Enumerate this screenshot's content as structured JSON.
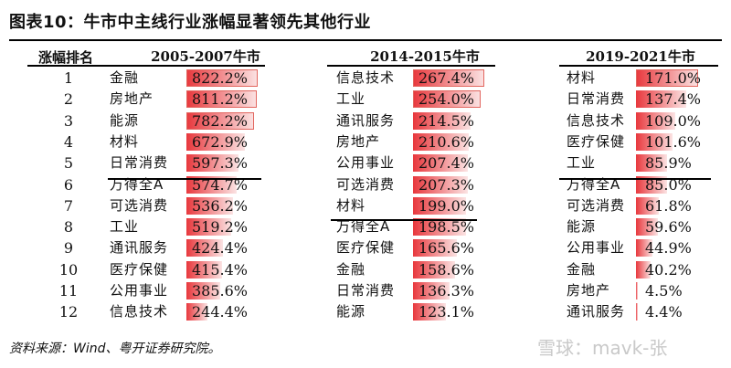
{
  "title": "图表10：牛市中主线行业涨幅显著领先其他行业",
  "rank_header": "涨幅排名",
  "groups": [
    {
      "header": "2005-2007牛市",
      "max": 822.2,
      "rows": [
        {
          "name": "金融",
          "value": "822.2%",
          "pct": 822.2
        },
        {
          "name": "房地产",
          "value": "811.2%",
          "pct": 811.2
        },
        {
          "name": "能源",
          "value": "782.2%",
          "pct": 782.2
        },
        {
          "name": "材料",
          "value": "672.9%",
          "pct": 672.9
        },
        {
          "name": "日常消费",
          "value": "597.3%",
          "pct": 597.3
        },
        {
          "name": "万得全A",
          "value": "574.7%",
          "pct": 574.7
        },
        {
          "name": "可选消费",
          "value": "536.2%",
          "pct": 536.2
        },
        {
          "name": "工业",
          "value": "519.2%",
          "pct": 519.2
        },
        {
          "name": "通讯服务",
          "value": "424.4%",
          "pct": 424.4
        },
        {
          "name": "医疗保健",
          "value": "415.4%",
          "pct": 415.4
        },
        {
          "name": "公用事业",
          "value": "385.6%",
          "pct": 385.6
        },
        {
          "name": "信息技术",
          "value": "244.4%",
          "pct": 244.4
        }
      ]
    },
    {
      "header": "2014-2015牛市",
      "max": 267.4,
      "rows": [
        {
          "name": "信息技术",
          "value": "267.4%",
          "pct": 267.4
        },
        {
          "name": "工业",
          "value": "254.0%",
          "pct": 254.0
        },
        {
          "name": "通讯服务",
          "value": "214.5%",
          "pct": 214.5
        },
        {
          "name": "房地产",
          "value": "210.6%",
          "pct": 210.6
        },
        {
          "name": "公用事业",
          "value": "207.4%",
          "pct": 207.4
        },
        {
          "name": "可选消费",
          "value": "207.3%",
          "pct": 207.3
        },
        {
          "name": "材料",
          "value": "199.0%",
          "pct": 199.0
        },
        {
          "name": "万得全A",
          "value": "198.5%",
          "pct": 198.5
        },
        {
          "name": "医疗保健",
          "value": "165.6%",
          "pct": 165.6
        },
        {
          "name": "金融",
          "value": "158.6%",
          "pct": 158.6
        },
        {
          "name": "日常消费",
          "value": "136.3%",
          "pct": 136.3
        },
        {
          "name": "能源",
          "value": "123.1%",
          "pct": 123.1
        }
      ]
    },
    {
      "header": "2019-2021牛市",
      "max": 171.0,
      "rows": [
        {
          "name": "材料",
          "value": "171.0%",
          "pct": 171.0
        },
        {
          "name": "日常消费",
          "value": "137.4%",
          "pct": 137.4
        },
        {
          "name": "信息技术",
          "value": "109.0%",
          "pct": 109.0
        },
        {
          "name": "医疗保健",
          "value": "101.6%",
          "pct": 101.6
        },
        {
          "name": "工业",
          "value": "85.9%",
          "pct": 85.9
        },
        {
          "name": "万得全A",
          "value": "85.0%",
          "pct": 85.0
        },
        {
          "name": "可选消费",
          "value": "61.8%",
          "pct": 61.8
        },
        {
          "name": "能源",
          "value": "59.6%",
          "pct": 59.6
        },
        {
          "name": "公用事业",
          "value": "44.9%",
          "pct": 44.9
        },
        {
          "name": "金融",
          "value": "40.2%",
          "pct": 40.2
        },
        {
          "name": "房地产",
          "value": "4.5%",
          "pct": 4.5
        },
        {
          "name": "通讯服务",
          "value": "4.4%",
          "pct": 4.4
        }
      ]
    }
  ],
  "source": "资料来源：Wind、粤开证券研究院。",
  "watermark": "雪球：mavk-张",
  "colors": {
    "bar_dark": "#e8383d",
    "bar_light": "#fbe3e3",
    "box": "#e2665f"
  }
}
